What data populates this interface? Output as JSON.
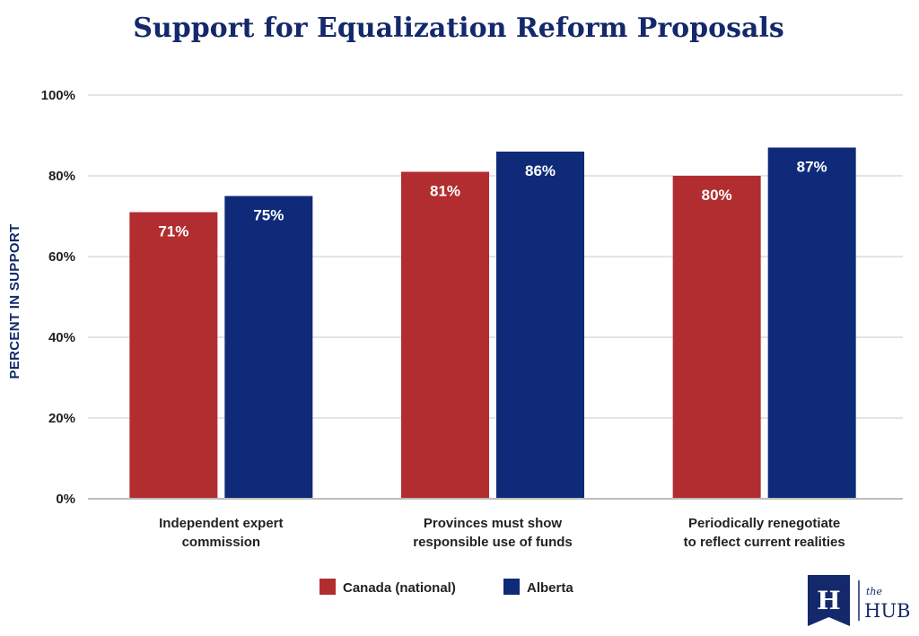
{
  "chart_data": {
    "type": "bar",
    "title": "Support for Equalization Reform Proposals",
    "xlabel": "",
    "ylabel": "PERCENT IN SUPPORT",
    "ylim": [
      0,
      100
    ],
    "yticks": [
      0,
      20,
      40,
      60,
      80,
      100
    ],
    "ytick_labels": [
      "0%",
      "20%",
      "40%",
      "60%",
      "80%",
      "100%"
    ],
    "grid": true,
    "legend_position": "bottom-center",
    "categories": [
      [
        "Independent expert",
        "commission"
      ],
      [
        "Provinces must show",
        "responsible use of funds"
      ],
      [
        "Periodically renegotiate",
        "to reflect current realities"
      ]
    ],
    "series": [
      {
        "name": "Canada (national)",
        "color": "#b22d30",
        "values": [
          71,
          81,
          80
        ],
        "labels": [
          "71%",
          "81%",
          "80%"
        ]
      },
      {
        "name": "Alberta",
        "color": "#0f2a78",
        "values": [
          75,
          86,
          87
        ],
        "labels": [
          "75%",
          "86%",
          "87%"
        ]
      }
    ]
  },
  "logo": {
    "mark": "H",
    "small": "the",
    "big": "HUB",
    "color": "#14296b"
  }
}
